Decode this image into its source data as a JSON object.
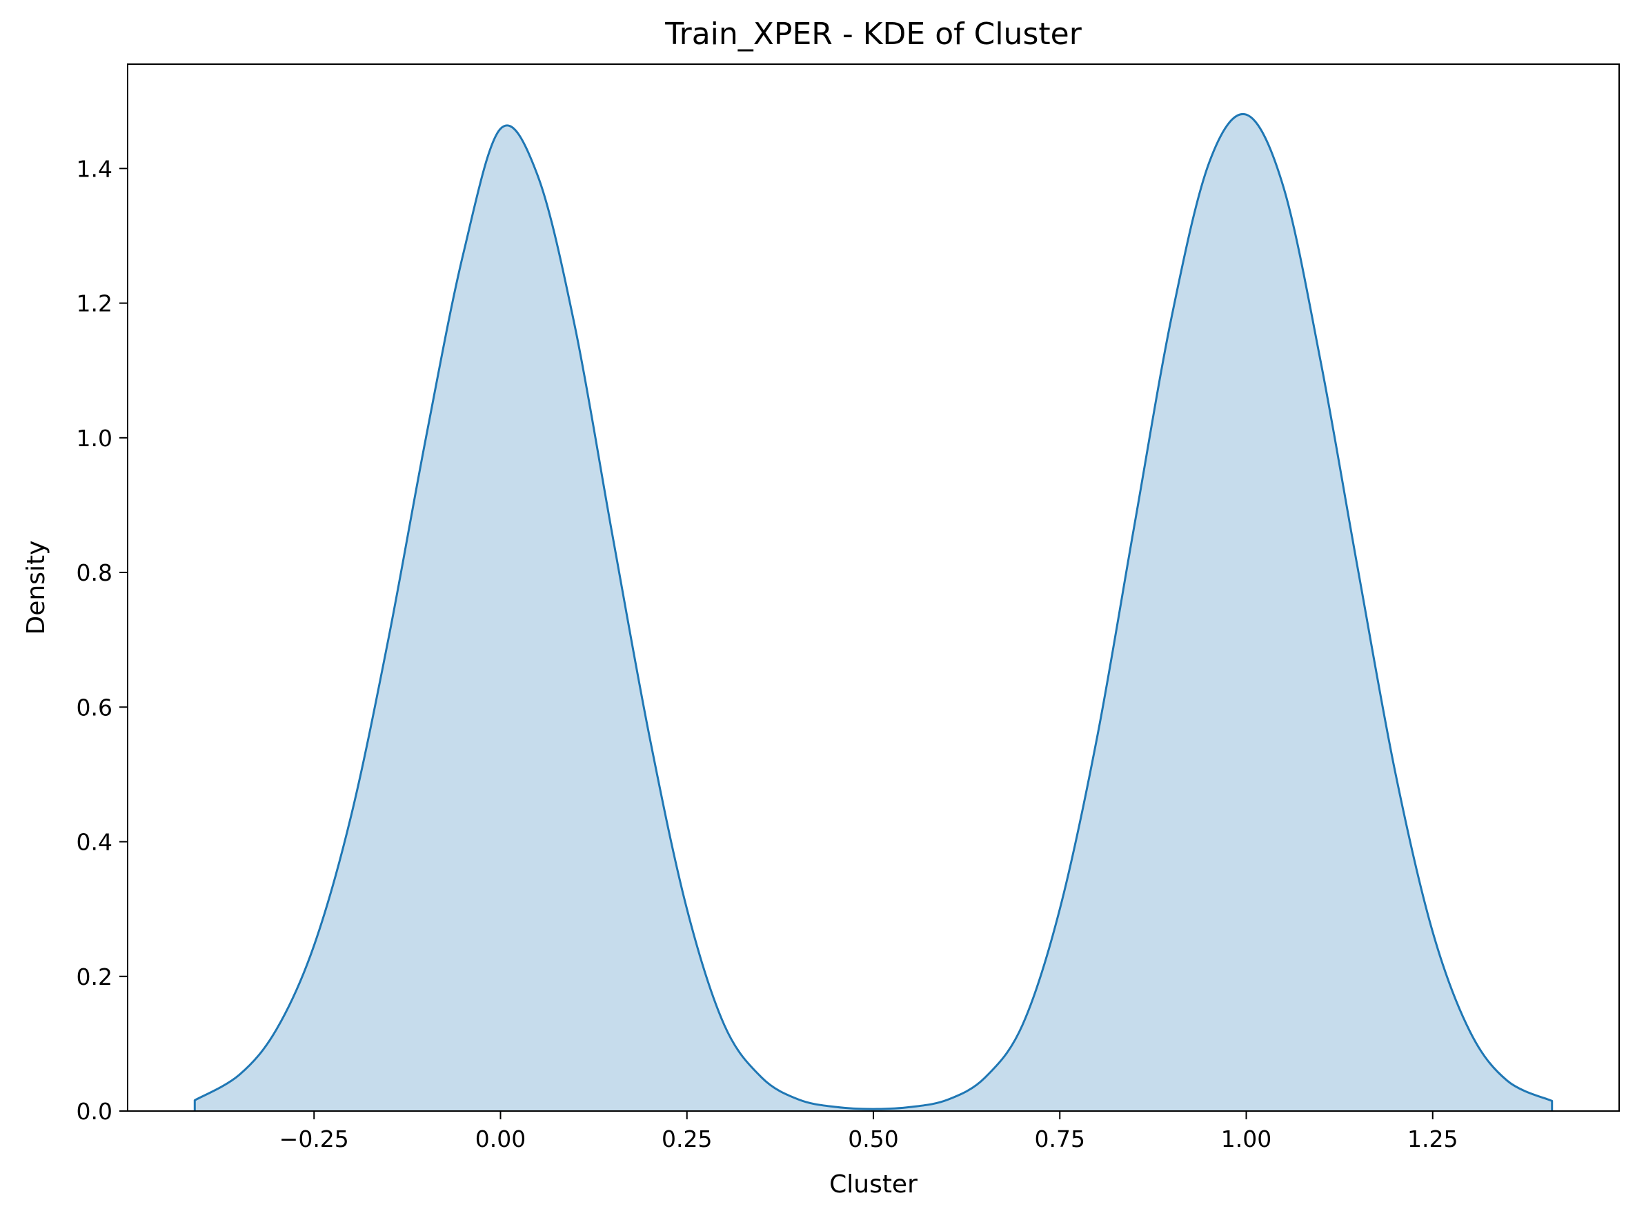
{
  "chart_data": {
    "type": "area",
    "title": "Train_XPER - KDE of Cluster",
    "xlabel": "Cluster",
    "ylabel": "Density",
    "xlim": [
      -0.5,
      1.5
    ],
    "ylim": [
      0.0,
      1.555
    ],
    "xticks": [
      -0.25,
      0.0,
      0.25,
      0.5,
      0.75,
      1.0,
      1.25
    ],
    "xtick_labels": [
      "−0.25",
      "0.00",
      "0.25",
      "0.50",
      "0.75",
      "1.00",
      "1.25"
    ],
    "yticks": [
      0.0,
      0.2,
      0.4,
      0.6,
      0.8,
      1.0,
      1.2,
      1.4
    ],
    "ytick_labels": [
      "0.0",
      "0.2",
      "0.4",
      "0.6",
      "0.8",
      "1.0",
      "1.2",
      "1.4"
    ],
    "grid": false,
    "legend": "none",
    "series": [
      {
        "x": [
          -0.41,
          -0.35,
          -0.3,
          -0.25,
          -0.2,
          -0.15,
          -0.1,
          -0.05,
          0.0,
          0.05,
          0.1,
          0.15,
          0.2,
          0.25,
          0.3,
          0.35,
          0.4,
          0.45,
          0.5,
          0.55,
          0.6,
          0.65,
          0.7,
          0.75,
          0.8,
          0.85,
          0.9,
          0.95,
          1.0,
          1.05,
          1.1,
          1.15,
          1.2,
          1.25,
          1.3,
          1.35,
          1.41
        ],
        "y": [
          0.016,
          0.054,
          0.122,
          0.246,
          0.44,
          0.703,
          1.0,
          1.273,
          1.459,
          1.389,
          1.164,
          0.856,
          0.555,
          0.3,
          0.128,
          0.05,
          0.017,
          0.006,
          0.003,
          0.006,
          0.017,
          0.05,
          0.128,
          0.3,
          0.555,
          0.87,
          1.18,
          1.408,
          1.48,
          1.372,
          1.112,
          0.803,
          0.502,
          0.266,
          0.118,
          0.045,
          0.015
        ],
        "color": "#1f77b4",
        "fill_color": "#c6dcec"
      }
    ]
  }
}
